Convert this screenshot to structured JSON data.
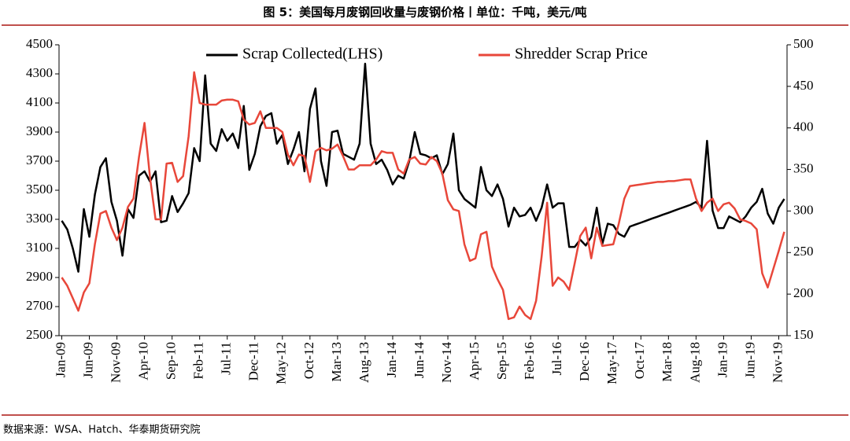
{
  "chart_data": {
    "type": "line",
    "title": "图 5：美国每月废钢回收量与废钢价格丨单位：千吨，美元/吨",
    "source": "数据来源：WSA、Hatch、华泰期货研究院",
    "categories": [
      "Jan-09",
      null,
      null,
      null,
      null,
      "Jun-09",
      null,
      null,
      null,
      null,
      "Nov-09",
      null,
      null,
      null,
      null,
      "Apr-10",
      null,
      null,
      null,
      null,
      "Sep-10",
      null,
      null,
      null,
      null,
      "Feb-11",
      null,
      null,
      null,
      null,
      "Jul-11",
      null,
      null,
      null,
      null,
      "Dec-11",
      null,
      null,
      null,
      null,
      "May-12",
      null,
      null,
      null,
      null,
      "Oct-12",
      null,
      null,
      null,
      null,
      "Mar-13",
      null,
      null,
      null,
      null,
      "Aug-13",
      null,
      null,
      null,
      null,
      "Jan-14",
      null,
      null,
      null,
      null,
      "Jun-14",
      null,
      null,
      null,
      null,
      "Nov-14",
      null,
      null,
      null,
      null,
      "Apr-15",
      null,
      null,
      null,
      null,
      "Sep-15",
      null,
      null,
      null,
      null,
      "Feb-16",
      null,
      null,
      null,
      null,
      "Jul-16",
      null,
      null,
      null,
      null,
      "Dec-16",
      null,
      null,
      null,
      null,
      "May-17",
      null,
      null,
      null,
      null,
      "Oct-17",
      null,
      null,
      null,
      null,
      "Mar-18",
      null,
      null,
      null,
      null,
      "Aug-18",
      null,
      null,
      null,
      null,
      "Jan-19",
      null,
      null,
      null,
      null,
      "Jun-19",
      null,
      null,
      null,
      null,
      "Nov-19",
      null
    ],
    "series": [
      {
        "name": "Scrap Collected(LHS)",
        "color": "#000000",
        "values": [
          3290,
          3230,
          3100,
          2940,
          3370,
          3180,
          3470,
          3660,
          3720,
          3420,
          3290,
          3050,
          3370,
          3310,
          3600,
          3630,
          3560,
          3630,
          3280,
          3290,
          3460,
          3350,
          3410,
          3480,
          3790,
          3700,
          4290,
          3820,
          3770,
          3920,
          3840,
          3890,
          3790,
          4080,
          3640,
          3750,
          3940,
          4010,
          4030,
          3820,
          3880,
          3680,
          3780,
          3900,
          3630,
          4060,
          4200,
          3700,
          3530,
          3900,
          3910,
          3750,
          3730,
          3710,
          3820,
          4370,
          3820,
          3680,
          3710,
          3640,
          3540,
          3600,
          3580,
          3700,
          3900,
          3750,
          3740,
          3720,
          3740,
          3610,
          3680,
          3890,
          3500,
          3440,
          3410,
          3380,
          3660,
          3500,
          3460,
          3540,
          3440,
          3250,
          3380,
          3320,
          3330,
          3380,
          3290,
          3380,
          3540,
          3380,
          3410,
          3410,
          3110,
          3110,
          3160,
          3120,
          3180,
          3380,
          3130,
          3270,
          3260,
          3200,
          3180,
          3250,
          3264,
          3277,
          3291,
          3305,
          3318,
          3332,
          3345,
          3359,
          3373,
          3386,
          3400,
          3420,
          3380,
          3840,
          3360,
          3240,
          3240,
          3320,
          3300,
          3280,
          3320,
          3380,
          3420,
          3510,
          3340,
          3270,
          3380,
          3440
        ]
      },
      {
        "name": "Shredder Scrap Price",
        "color": "#e8473a",
        "axis": "y2",
        "values": [
          220,
          210,
          195,
          180,
          202,
          213,
          260,
          297,
          300,
          280,
          265,
          280,
          305,
          315,
          365,
          406,
          340,
          290,
          290,
          357,
          358,
          335,
          342,
          390,
          467,
          430,
          428,
          428,
          428,
          433,
          434,
          434,
          432,
          410,
          404,
          406,
          420,
          400,
          400,
          400,
          395,
          368,
          355,
          368,
          366,
          335,
          372,
          376,
          373,
          375,
          380,
          366,
          350,
          350,
          355,
          355,
          355,
          362,
          372,
          370,
          370,
          350,
          345,
          362,
          365,
          357,
          356,
          365,
          360,
          345,
          313,
          302,
          300,
          260,
          240,
          243,
          272,
          275,
          233,
          218,
          205,
          170,
          172,
          185,
          175,
          170,
          192,
          245,
          310,
          210,
          220,
          215,
          205,
          237,
          270,
          280,
          243,
          280,
          258,
          259,
          260,
          285,
          315,
          330,
          331,
          332,
          333,
          334,
          335,
          335,
          336,
          336,
          337,
          338,
          338,
          315,
          300,
          310,
          315,
          300,
          308,
          310,
          303,
          290,
          288,
          285,
          278,
          225,
          208,
          230,
          252,
          275
        ]
      }
    ],
    "ylim": [
      2500,
      4500
    ],
    "yticks": [
      2500,
      2700,
      2900,
      3100,
      3300,
      3500,
      3700,
      3900,
      4100,
      4300,
      4500
    ],
    "y2lim": [
      150,
      500
    ],
    "y2ticks": [
      150,
      200,
      250,
      300,
      350,
      400,
      450,
      500
    ],
    "grid": false,
    "legend": "top"
  }
}
